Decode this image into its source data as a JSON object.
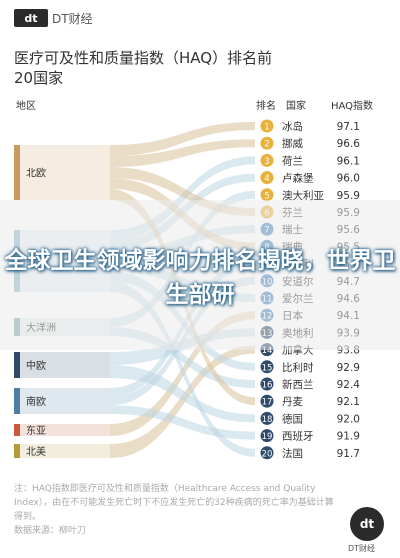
{
  "brand": {
    "logo": "dt",
    "name": "DT财经"
  },
  "headline": "全球卫生领域影响力排名揭晓，世界卫生部研",
  "chart_data": {
    "type": "table",
    "title": "医疗可及性和质量指数（HAQ）排名前20国家",
    "columns": {
      "region": "地区",
      "rank": "排名",
      "country": "国家",
      "score": "HAQ指数"
    },
    "regions": [
      "北欧",
      "西欧",
      "大洋洲",
      "中欧",
      "南欧",
      "东亚",
      "北美"
    ],
    "rows": [
      {
        "rank": 1,
        "country": "冰岛",
        "score": 97.1,
        "region": "北欧"
      },
      {
        "rank": 2,
        "country": "挪威",
        "score": 96.6,
        "region": "北欧"
      },
      {
        "rank": 3,
        "country": "荷兰",
        "score": 96.1,
        "region": "西欧"
      },
      {
        "rank": 4,
        "country": "卢森堡",
        "score": 96.0,
        "region": "西欧"
      },
      {
        "rank": 5,
        "country": "澳大利亚",
        "score": 95.9,
        "region": "大洋洲"
      },
      {
        "rank": 6,
        "country": "芬兰",
        "score": 95.9,
        "region": "北欧"
      },
      {
        "rank": 7,
        "country": "瑞士",
        "score": 95.6,
        "region": "西欧"
      },
      {
        "rank": 8,
        "country": "瑞典",
        "score": 95.5,
        "region": "北欧"
      },
      {
        "rank": 9,
        "country": "意大利",
        "score": 95.1,
        "region": "南欧"
      },
      {
        "rank": 10,
        "country": "安道尔",
        "score": 94.7,
        "region": "南欧"
      },
      {
        "rank": 11,
        "country": "爱尔兰",
        "score": 94.6,
        "region": "西欧"
      },
      {
        "rank": 12,
        "country": "日本",
        "score": 94.1,
        "region": "东亚"
      },
      {
        "rank": 13,
        "country": "奥地利",
        "score": 93.9,
        "region": "中欧"
      },
      {
        "rank": 14,
        "country": "加拿大",
        "score": 93.8,
        "region": "北美"
      },
      {
        "rank": 15,
        "country": "比利时",
        "score": 92.9,
        "region": "西欧"
      },
      {
        "rank": 16,
        "country": "新西兰",
        "score": 92.4,
        "region": "大洋洲"
      },
      {
        "rank": 17,
        "country": "丹麦",
        "score": 92.1,
        "region": "北欧"
      },
      {
        "rank": 18,
        "country": "德国",
        "score": 92.0,
        "region": "中欧"
      },
      {
        "rank": 19,
        "country": "西班牙",
        "score": 91.9,
        "region": "南欧"
      },
      {
        "rank": 20,
        "country": "法国",
        "score": 91.7,
        "region": "西欧"
      }
    ]
  },
  "footnote": "注：HAQ指数即医疗可及性和质量指数（Healthcare Access and Quality Index），由在不可能发生死亡时下不应发生死亡的32种疾病的死亡率为基础计算得到。",
  "source_line": "数据来源：柳叶刀",
  "footer_logo": "dt",
  "footer_name": "DT财经",
  "colors": {
    "北欧": "#c89b5e",
    "西欧": "#8fb8c9",
    "大洋洲": "#7fa6b0",
    "中欧": "#2e4b6b",
    "南欧": "#4f7fa0",
    "东亚": "#c65a3a",
    "北美": "#b59a3b",
    "rank_badge": [
      "#e8b13c",
      "#4b86c2",
      "#2e4b6b"
    ],
    "flow_light": "#d9c19a",
    "flow_blue": "#bcd6e4"
  }
}
